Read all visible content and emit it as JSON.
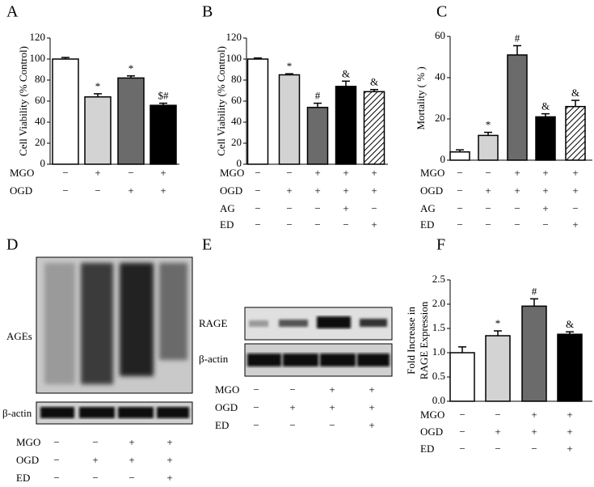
{
  "chart_data": [
    {
      "type": "bar",
      "panel": "A",
      "ylabel": [
        "Cell Viability (% Control)"
      ],
      "values": [
        100,
        64,
        82,
        56
      ],
      "errors": [
        1.5,
        3,
        2,
        2
      ],
      "colors": [
        "#ffffff",
        "#d3d3d3",
        "#6b6b6b",
        "#000000"
      ],
      "annotations": [
        null,
        "*",
        "*",
        "$#"
      ],
      "ylim": [
        0,
        120
      ],
      "yticks": [
        0,
        20,
        40,
        60,
        80,
        100,
        120
      ],
      "treatments": [
        {
          "name": "MGO",
          "marks": [
            "−",
            "+",
            "−",
            "+"
          ]
        },
        {
          "name": "OGD",
          "marks": [
            "−",
            "−",
            "+",
            "+"
          ]
        }
      ]
    },
    {
      "type": "bar",
      "panel": "B",
      "ylabel": [
        "Cell Viability (% Control)"
      ],
      "values": [
        100,
        85,
        54,
        74,
        69
      ],
      "errors": [
        1,
        1,
        4,
        5,
        2
      ],
      "colors": [
        "#ffffff",
        "#d3d3d3",
        "#6b6b6b",
        "#000000",
        "hatch"
      ],
      "annotations": [
        null,
        "*",
        "#",
        "&",
        "&"
      ],
      "ylim": [
        0,
        120
      ],
      "yticks": [
        0,
        20,
        40,
        60,
        80,
        100,
        120
      ],
      "treatments": [
        {
          "name": "MGO",
          "marks": [
            "−",
            "−",
            "+",
            "+",
            "+"
          ]
        },
        {
          "name": "OGD",
          "marks": [
            "−",
            "+",
            "+",
            "+",
            "+"
          ]
        },
        {
          "name": "AG",
          "marks": [
            "−",
            "−",
            "−",
            "+",
            "−"
          ]
        },
        {
          "name": "ED",
          "marks": [
            "−",
            "−",
            "−",
            "−",
            "+"
          ]
        }
      ]
    },
    {
      "type": "bar",
      "panel": "C",
      "ylabel": [
        "Mortality ( % )"
      ],
      "values": [
        4,
        12,
        51,
        21,
        26
      ],
      "errors": [
        1,
        1.5,
        4.5,
        1.5,
        3
      ],
      "colors": [
        "#ffffff",
        "#d3d3d3",
        "#6b6b6b",
        "#000000",
        "hatch"
      ],
      "annotations": [
        null,
        "*",
        "#",
        "&",
        "&"
      ],
      "ylim": [
        0,
        60
      ],
      "yticks": [
        0,
        20,
        40,
        60
      ],
      "treatments": [
        {
          "name": "MGO",
          "marks": [
            "−",
            "−",
            "+",
            "+",
            "+"
          ]
        },
        {
          "name": "OGD",
          "marks": [
            "−",
            "+",
            "+",
            "+",
            "+"
          ]
        },
        {
          "name": "AG",
          "marks": [
            "−",
            "−",
            "−",
            "+",
            "−"
          ]
        },
        {
          "name": "ED",
          "marks": [
            "−",
            "−",
            "−",
            "−",
            "+"
          ]
        }
      ]
    },
    {
      "type": "bar",
      "panel": "F",
      "ylabel": [
        "Fold Increase in",
        "RAGE Expression"
      ],
      "values": [
        1.0,
        1.35,
        1.96,
        1.38
      ],
      "errors": [
        0.12,
        0.1,
        0.15,
        0.05
      ],
      "colors": [
        "#ffffff",
        "#d3d3d3",
        "#6b6b6b",
        "#000000"
      ],
      "annotations": [
        null,
        "*",
        "#",
        "&"
      ],
      "ylim": [
        0,
        2.5
      ],
      "yticks": [
        {
          "value": 0,
          "label": "0.0"
        },
        0.5,
        {
          "value": 1,
          "label": "1.0"
        },
        1.5,
        {
          "value": 2,
          "label": "2.0"
        },
        2.5
      ],
      "treatments": [
        {
          "name": "MGO",
          "marks": [
            "−",
            "−",
            "+",
            "+"
          ]
        },
        {
          "name": "OGD",
          "marks": [
            "−",
            "+",
            "+",
            "+"
          ]
        },
        {
          "name": "ED",
          "marks": [
            "−",
            "−",
            "−",
            "+"
          ]
        }
      ]
    }
  ],
  "blots": [
    {
      "panel": "D",
      "bands": [
        "AGEs",
        "β-actin"
      ],
      "treatments": [
        {
          "name": "MGO",
          "marks": [
            "−",
            "−",
            "+",
            "+"
          ]
        },
        {
          "name": "OGD",
          "marks": [
            "−",
            "+",
            "+",
            "+"
          ]
        },
        {
          "name": "ED",
          "marks": [
            "−",
            "−",
            "−",
            "+"
          ]
        }
      ]
    },
    {
      "panel": "E",
      "bands": [
        "RAGE",
        "β-actin"
      ],
      "treatments": [
        {
          "name": "MGO",
          "marks": [
            "−",
            "−",
            "+",
            "+"
          ]
        },
        {
          "name": "OGD",
          "marks": [
            "−",
            "+",
            "+",
            "+"
          ]
        },
        {
          "name": "ED",
          "marks": [
            "−",
            "−",
            "−",
            "+"
          ]
        }
      ]
    }
  ]
}
